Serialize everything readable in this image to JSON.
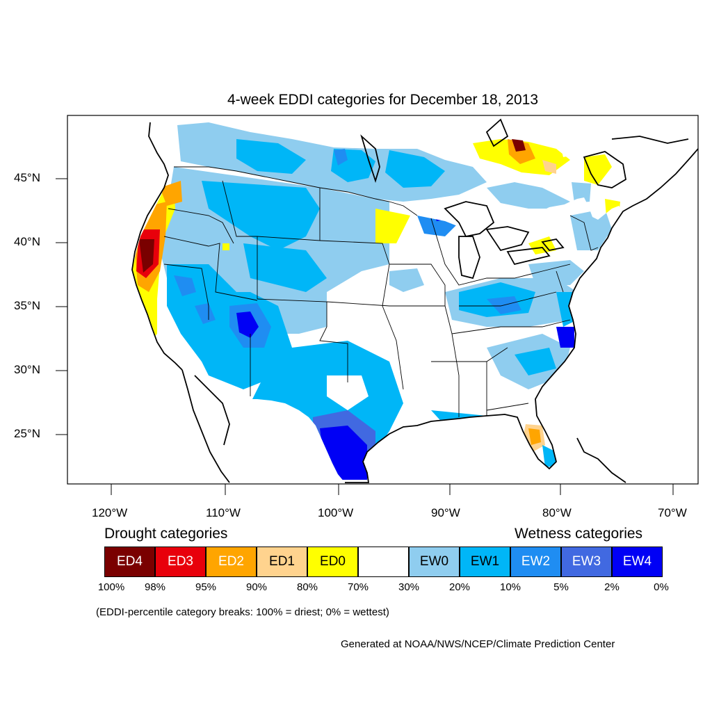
{
  "title": "4-week EDDI categories for December 18, 2013",
  "lat_labels": [
    "45°N",
    "40°N",
    "35°N",
    "30°N",
    "25°N"
  ],
  "lon_labels": [
    "120°W",
    "110°W",
    "100°W",
    "90°W",
    "80°W",
    "70°W"
  ],
  "legend": {
    "drought_heading": "Drought categories",
    "wetness_heading": "Wetness categories",
    "categories": [
      {
        "label": "ED4",
        "color": "#7a0000",
        "text_color": "#ffffff"
      },
      {
        "label": "ED3",
        "color": "#e8000b",
        "text_color": "#ffffff"
      },
      {
        "label": "ED2",
        "color": "#ffa500",
        "text_color": "#ffffff"
      },
      {
        "label": "ED1",
        "color": "#ffd38e",
        "text_color": "#000000"
      },
      {
        "label": "ED0",
        "color": "#ffff00",
        "text_color": "#000000"
      },
      {
        "label": "",
        "color": "#ffffff",
        "text_color": "#000000"
      },
      {
        "label": "EW0",
        "color": "#8fcdef",
        "text_color": "#000000"
      },
      {
        "label": "EW1",
        "color": "#00b6f7",
        "text_color": "#000000"
      },
      {
        "label": "EW2",
        "color": "#1f8df2",
        "text_color": "#ffffff"
      },
      {
        "label": "EW3",
        "color": "#4169e1",
        "text_color": "#ffffff"
      },
      {
        "label": "EW4",
        "color": "#0000f5",
        "text_color": "#ffffff"
      }
    ],
    "breaks": [
      "100%",
      "98%",
      "95%",
      "90%",
      "80%",
      "70%",
      "30%",
      "20%",
      "10%",
      "5%",
      "2%",
      "0%"
    ]
  },
  "note": "(EDDI-percentile category breaks: 100% = driest; 0% = wettest)",
  "credit": "Generated at NOAA/NWS/NCEP/Climate Prediction Center"
}
